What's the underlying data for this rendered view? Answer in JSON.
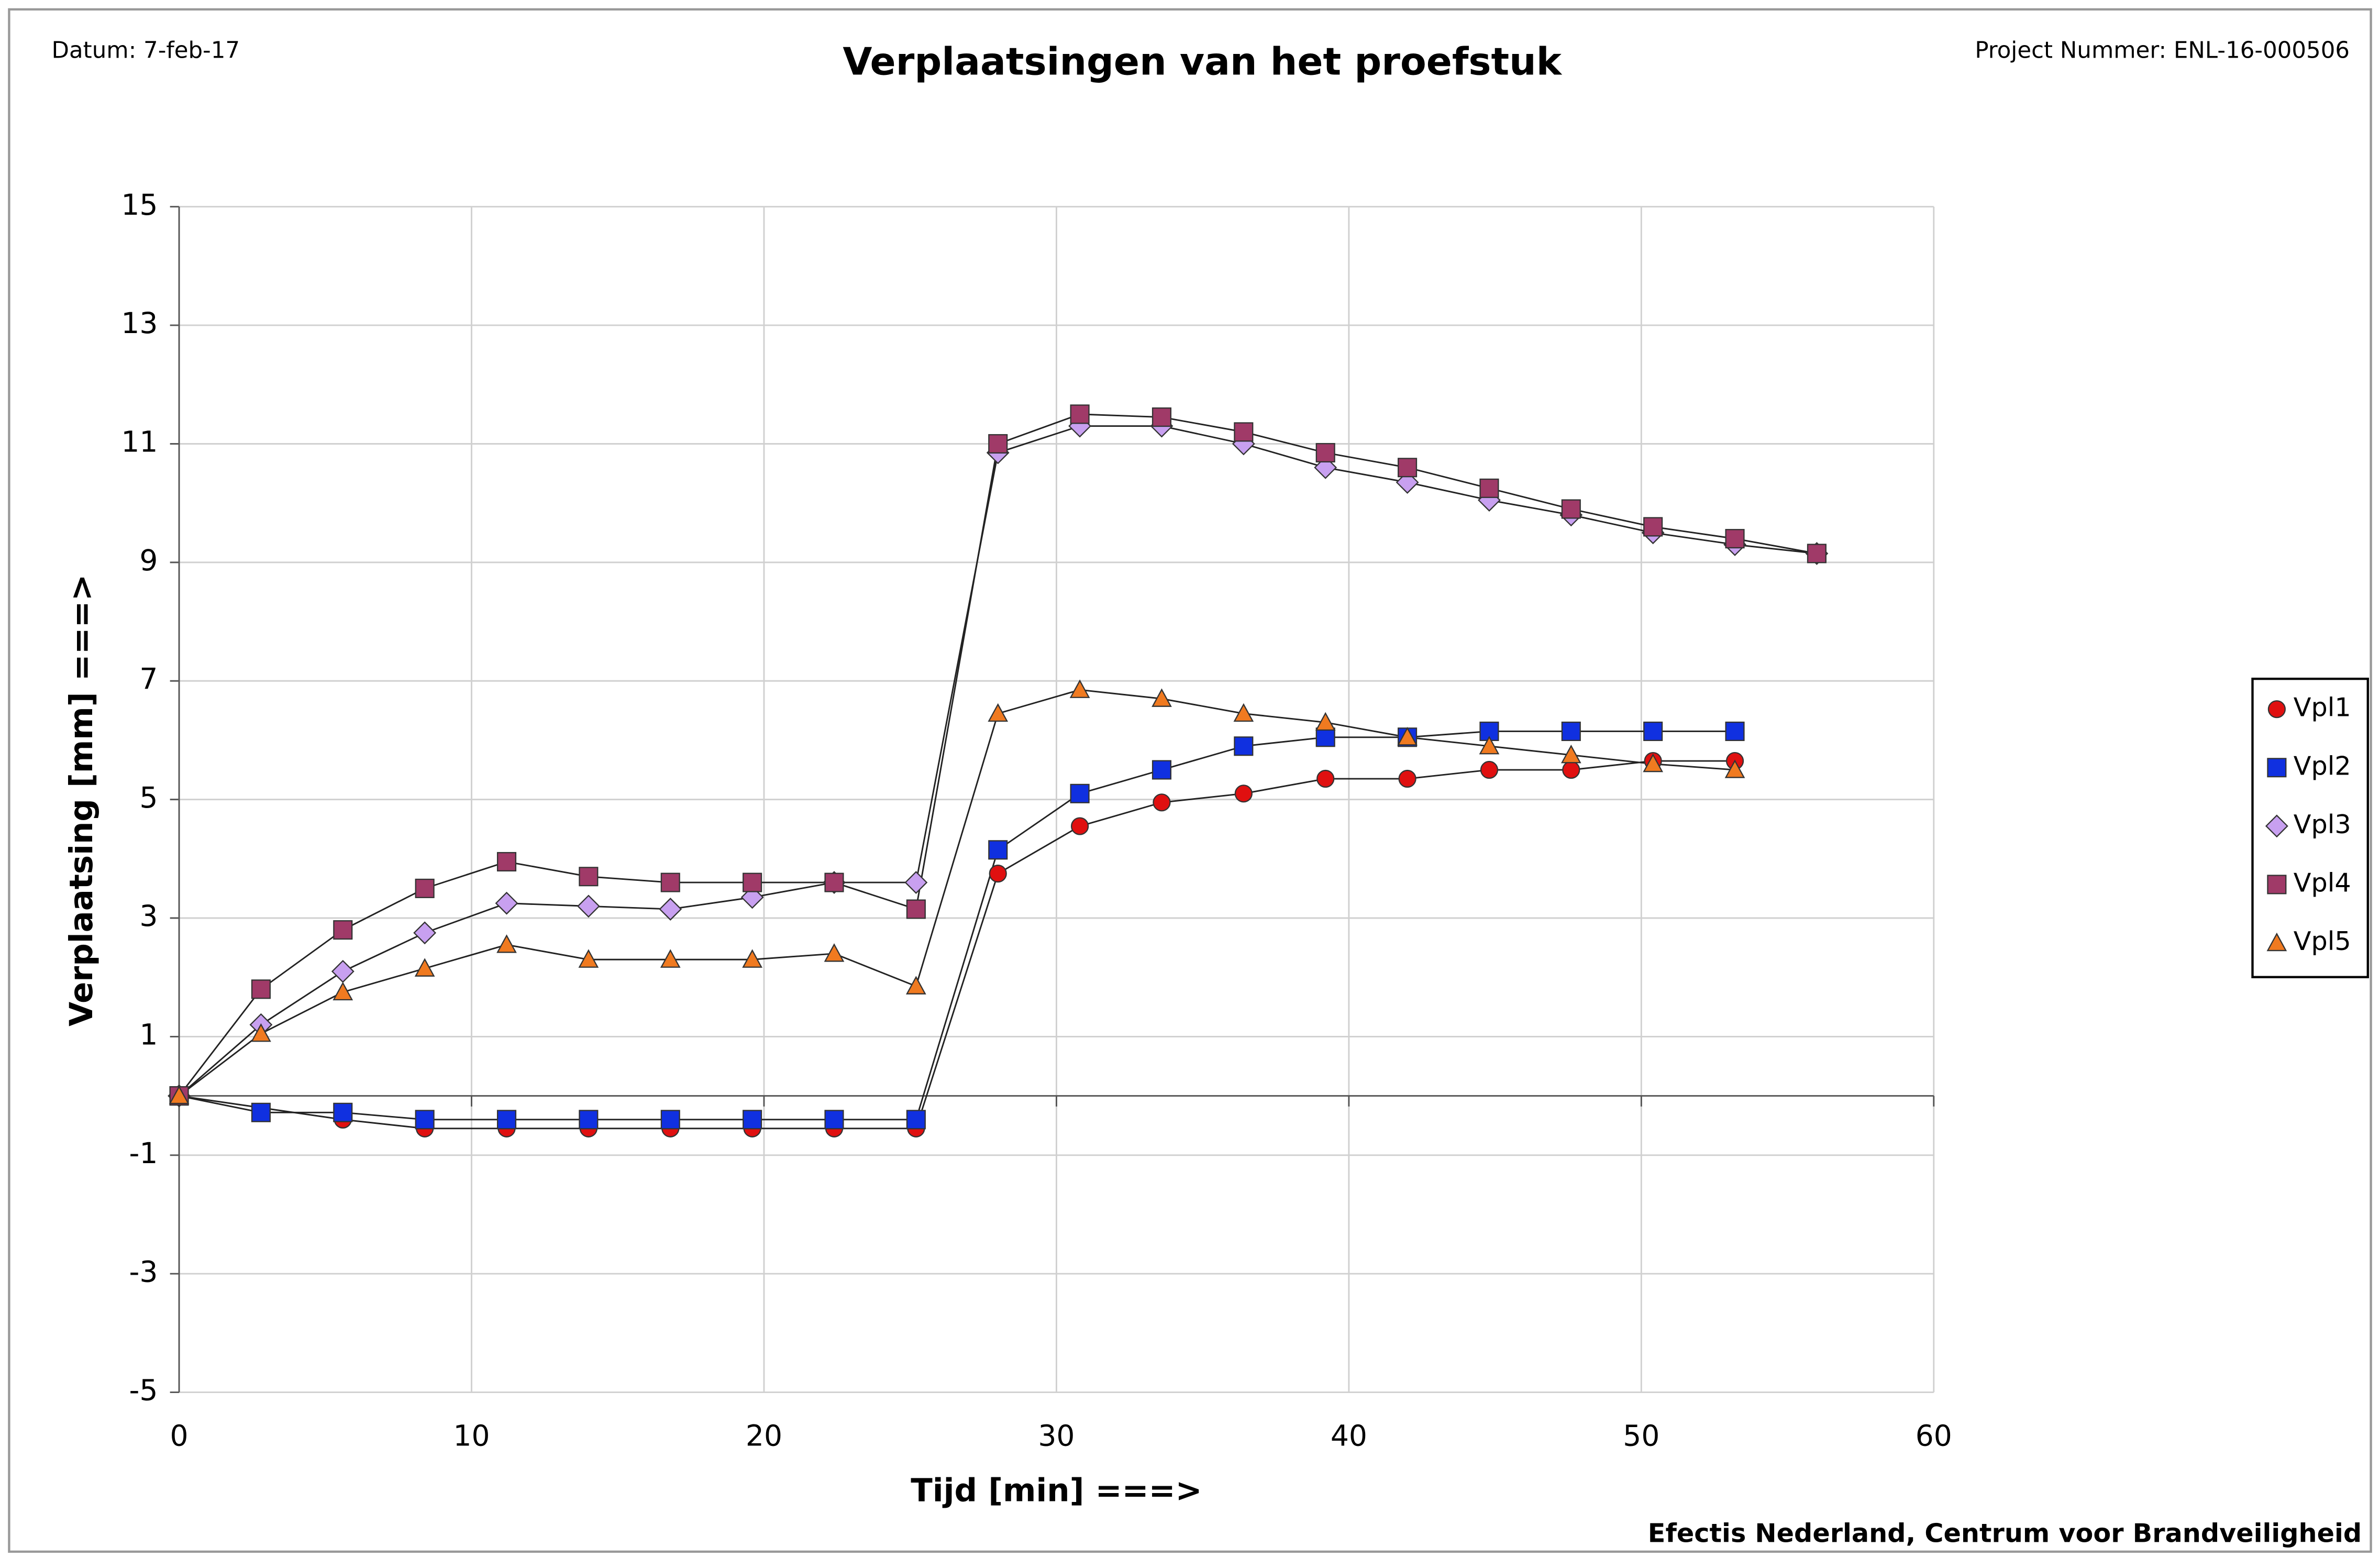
{
  "chart_data": {
    "type": "line",
    "title": "Verplaatsingen van het proefstuk",
    "date_label": "Datum: 7-feb-17",
    "project_label": "Project Nummer: ENL-16-000506",
    "footer": "Efectis Nederland, Centrum voor Brandveiligheid",
    "xlabel": "Tijd [min] ===>",
    "ylabel": "Verplaatsing [mm] ===>",
    "xlim": [
      0,
      60
    ],
    "xticks": [
      0,
      10,
      20,
      30,
      40,
      50,
      60
    ],
    "ylim": [
      -5,
      15
    ],
    "yticks": [
      -5,
      -3,
      -1,
      1,
      3,
      5,
      7,
      9,
      11,
      13,
      15
    ],
    "grid": true,
    "legend": "right",
    "series": [
      {
        "name": "Vpl1",
        "color": "#e01010",
        "marker": "circle",
        "x": [
          0,
          5.6,
          8.4,
          11.2,
          14,
          16.8,
          19.6,
          22.4,
          25.2,
          28,
          30.8,
          33.6,
          36.4,
          39.2,
          42,
          44.8,
          47.6,
          50.4,
          53.2
        ],
        "values": [
          0,
          -0.4,
          -0.55,
          -0.55,
          -0.55,
          -0.55,
          -0.55,
          -0.55,
          -0.55,
          3.75,
          4.55,
          4.95,
          5.1,
          5.35,
          5.35,
          5.5,
          5.5,
          5.65,
          5.65
        ]
      },
      {
        "name": "Vpl2",
        "color": "#1030e0",
        "marker": "square",
        "x": [
          0,
          2.8,
          5.6,
          8.4,
          11.2,
          14,
          16.8,
          19.6,
          22.4,
          25.2,
          28,
          30.8,
          33.6,
          36.4,
          39.2,
          42,
          44.8,
          47.6,
          50.4,
          53.2
        ],
        "values": [
          0,
          -0.28,
          -0.28,
          -0.4,
          -0.4,
          -0.4,
          -0.4,
          -0.4,
          -0.4,
          -0.4,
          4.15,
          5.1,
          5.5,
          5.9,
          6.05,
          6.05,
          6.15,
          6.15,
          6.15,
          6.15
        ]
      },
      {
        "name": "Vpl3",
        "color": "#c8a0f0",
        "marker": "diamond",
        "x": [
          0,
          2.8,
          5.6,
          8.4,
          11.2,
          14,
          16.8,
          19.6,
          22.4,
          25.2,
          28,
          30.8,
          33.6,
          36.4,
          39.2,
          42,
          44.8,
          47.6,
          50.4,
          53.2,
          56
        ],
        "values": [
          0,
          1.2,
          2.1,
          2.75,
          3.25,
          3.2,
          3.15,
          3.35,
          3.6,
          3.6,
          10.85,
          11.3,
          11.3,
          11.0,
          10.6,
          10.35,
          10.05,
          9.8,
          9.5,
          9.3,
          9.15
        ]
      },
      {
        "name": "Vpl4",
        "color": "#a03a68",
        "marker": "square",
        "x": [
          0,
          2.8,
          5.6,
          8.4,
          11.2,
          14,
          16.8,
          19.6,
          22.4,
          25.2,
          28,
          30.8,
          33.6,
          36.4,
          39.2,
          42,
          44.8,
          47.6,
          50.4,
          53.2,
          56
        ],
        "values": [
          0,
          1.8,
          2.8,
          3.5,
          3.95,
          3.7,
          3.6,
          3.6,
          3.6,
          3.15,
          11.0,
          11.5,
          11.45,
          11.2,
          10.85,
          10.6,
          10.25,
          9.9,
          9.6,
          9.4,
          9.15
        ]
      },
      {
        "name": "Vpl5",
        "color": "#f07a20",
        "marker": "triangle",
        "x": [
          0,
          2.8,
          5.6,
          8.4,
          11.2,
          14,
          16.8,
          19.6,
          22.4,
          25.2,
          28,
          30.8,
          33.6,
          36.4,
          39.2,
          42,
          44.8,
          47.6,
          50.4,
          53.2
        ],
        "values": [
          0,
          1.05,
          1.75,
          2.15,
          2.55,
          2.3,
          2.3,
          2.3,
          2.4,
          1.85,
          6.45,
          6.85,
          6.7,
          6.45,
          6.3,
          6.05,
          5.9,
          5.75,
          5.6,
          5.5
        ]
      }
    ]
  }
}
